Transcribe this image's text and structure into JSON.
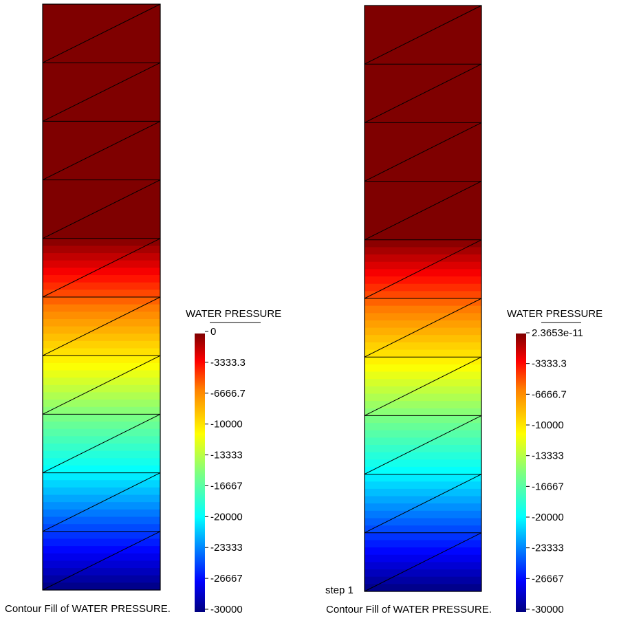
{
  "panels": [
    {
      "id": "left",
      "legend_title": "WATER PRESSURE",
      "legend_labels": [
        "0",
        "-3333.3",
        "-6666.7",
        "-10000",
        "-13333",
        "-16667",
        "-20000",
        "-23333",
        "-26667",
        "-30000"
      ],
      "caption": "Contour Fill of WATER PRESSURE.",
      "step_label": ""
    },
    {
      "id": "right",
      "legend_title": "WATER PRESSURE",
      "legend_labels": [
        "2.3653e-11",
        "-3333.3",
        "-6666.7",
        "-10000",
        "-13333",
        "-16667",
        "-20000",
        "-23333",
        "-26667",
        "-30000"
      ],
      "caption": "Contour Fill of WATER PRESSURE.",
      "step_label": "step 1"
    }
  ],
  "colormap": [
    "#00007f",
    "#0000ff",
    "#007fff",
    "#00ffff",
    "#7fff7f",
    "#ffff00",
    "#ff7f00",
    "#ff0000",
    "#7f0000"
  ]
}
